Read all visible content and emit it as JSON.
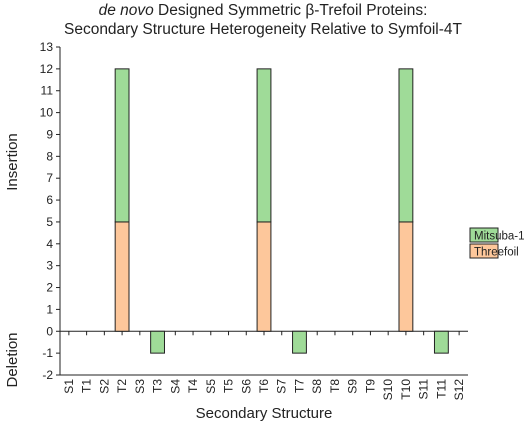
{
  "chart_data": {
    "type": "bar",
    "stacked": true,
    "title": {
      "italic_prefix": "de novo",
      "line1_rest": " Designed Symmetric β-Trefoil Proteins:",
      "line2": "Secondary Structure Heterogeneity Relative to Symfoil-4T"
    },
    "xlabel": "Secondary Structure",
    "ylabel_top": "Insertion",
    "ylabel_bottom": "Deletion",
    "ylim": [
      -2,
      13
    ],
    "yticks": [
      -2,
      -1,
      0,
      1,
      2,
      3,
      4,
      5,
      6,
      7,
      8,
      9,
      10,
      11,
      12,
      13
    ],
    "grid": false,
    "legend_position": "right",
    "categories": [
      "S1",
      "T1",
      "S2",
      "T2",
      "S3",
      "T3",
      "S4",
      "T4",
      "S5",
      "T5",
      "S6",
      "T6",
      "S7",
      "T7",
      "S8",
      "T8",
      "S9",
      "T9",
      "S10",
      "T10",
      "S11",
      "T11",
      "S12"
    ],
    "series": [
      {
        "name": "Threefoil",
        "color": "#fdc79b",
        "values": [
          0,
          0,
          0,
          5,
          0,
          0,
          0,
          0,
          0,
          0,
          0,
          5,
          0,
          0,
          0,
          0,
          0,
          0,
          0,
          5,
          0,
          0,
          0
        ]
      },
      {
        "name": "Mitsuba-1",
        "color": "#9fdb98",
        "values": [
          0,
          0,
          0,
          7,
          0,
          -1,
          0,
          0,
          0,
          0,
          0,
          7,
          0,
          -1,
          0,
          0,
          0,
          0,
          0,
          7,
          0,
          -1,
          0
        ]
      }
    ],
    "legend_order": [
      "Mitsuba-1",
      "Threefoil"
    ]
  }
}
